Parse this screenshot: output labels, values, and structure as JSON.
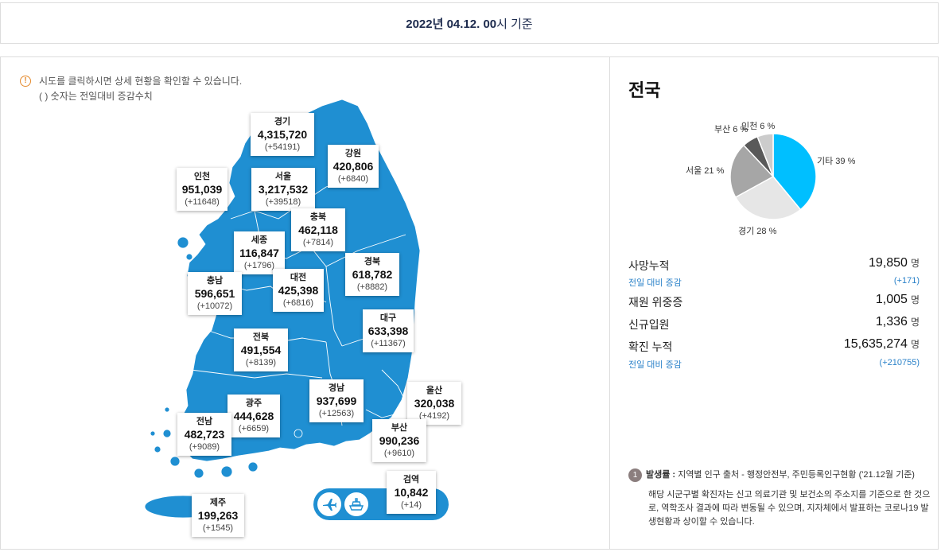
{
  "header": {
    "date_bold": "2022년 04.12. 00",
    "date_rest": "시 기준"
  },
  "notice": {
    "line1": "시도를 클릭하시면 상세 현황을 확인할 수 있습니다.",
    "line2": "( ) 숫자는 전일대비 증감수치"
  },
  "regions": [
    {
      "name": "경기",
      "value": "4,315,720",
      "inc": "(+54191)"
    },
    {
      "name": "강원",
      "value": "420,806",
      "inc": "(+6840)"
    },
    {
      "name": "인천",
      "value": "951,039",
      "inc": "(+11648)"
    },
    {
      "name": "서울",
      "value": "3,217,532",
      "inc": "(+39518)"
    },
    {
      "name": "충북",
      "value": "462,118",
      "inc": "(+7814)"
    },
    {
      "name": "세종",
      "value": "116,847",
      "inc": "(+1796)"
    },
    {
      "name": "경북",
      "value": "618,782",
      "inc": "(+8882)"
    },
    {
      "name": "충남",
      "value": "596,651",
      "inc": "(+10072)"
    },
    {
      "name": "대전",
      "value": "425,398",
      "inc": "(+6816)"
    },
    {
      "name": "대구",
      "value": "633,398",
      "inc": "(+11367)"
    },
    {
      "name": "전북",
      "value": "491,554",
      "inc": "(+8139)"
    },
    {
      "name": "울산",
      "value": "320,038",
      "inc": "(+4192)"
    },
    {
      "name": "경남",
      "value": "937,699",
      "inc": "(+12563)"
    },
    {
      "name": "광주",
      "value": "444,628",
      "inc": "(+6659)"
    },
    {
      "name": "전남",
      "value": "482,723",
      "inc": "(+9089)"
    },
    {
      "name": "부산",
      "value": "990,236",
      "inc": "(+9610)"
    },
    {
      "name": "제주",
      "value": "199,263",
      "inc": "(+1545)"
    },
    {
      "name": "검역",
      "value": "10,842",
      "inc": "(+14)"
    }
  ],
  "quarantine_icons": [
    "airplane-icon",
    "ship-icon"
  ],
  "national": {
    "title": "전국",
    "pie": [
      {
        "label": "기타 39 %",
        "pct": 39,
        "color": "#00bfff"
      },
      {
        "label": "경기 28 %",
        "pct": 28,
        "color": "#e6e6e6"
      },
      {
        "label": "서울 21 %",
        "pct": 21,
        "color": "#a6a6a6"
      },
      {
        "label": "부산 6 %",
        "pct": 6,
        "color": "#595959"
      },
      {
        "label": "인천 6 %",
        "pct": 6,
        "color": "#cccccc"
      }
    ],
    "stats": {
      "deaths_label": "사망누적",
      "deaths": "19,850",
      "deaths_unit": "명",
      "deaths_sub_label": "전일 대비 증감",
      "deaths_sub": "(+171)",
      "severe_label": "재원 위중증",
      "severe": "1,005",
      "severe_unit": "명",
      "admit_label": "신규입원",
      "admit": "1,336",
      "admit_unit": "명",
      "total_label": "확진 누적",
      "total": "15,635,274",
      "total_unit": "명",
      "total_sub_label": "전일 대비 증감",
      "total_sub": "(+210755)"
    },
    "footnote": {
      "badge": "1",
      "source_bold": "발생률 :",
      "source_rest": " 지역별 인구 출처 - 행정안전부, 주민등록인구현황 ('21.12월 기준)",
      "body": "해당 시군구별 확진자는 신고 의료기관 및 보건소의 주소지를 기준으로 한 것으로, 역학조사 결과에 따라 변동될 수 있으며, 지자체에서 발표하는 코로나19 발생현황과 상이할 수 있습니다."
    }
  }
}
